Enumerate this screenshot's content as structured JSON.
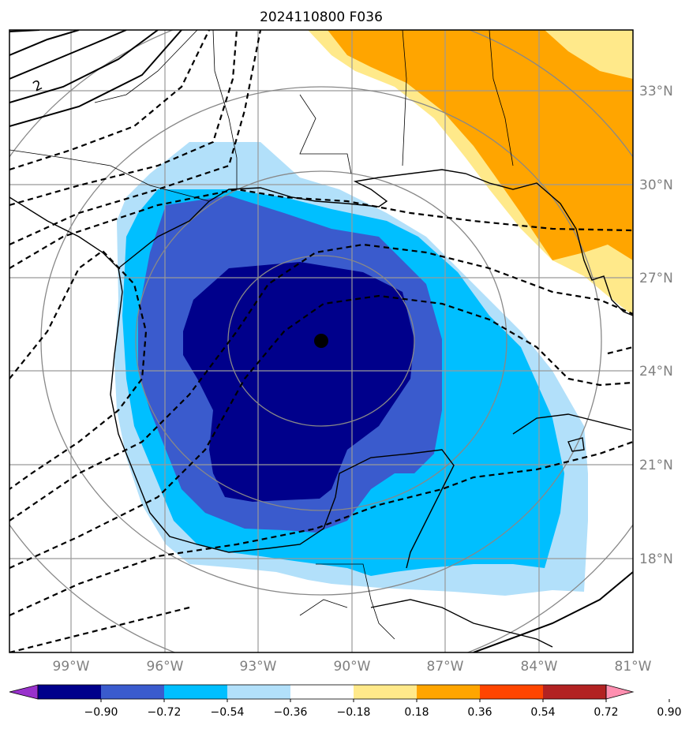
{
  "title": "2024110800 F036",
  "lon_labels": [
    "99°W",
    "96°W",
    "93°W",
    "90°W",
    "87°W",
    "84°W",
    "81°W"
  ],
  "lat_labels": [
    "33°N",
    "30°N",
    "27°N",
    "24°N",
    "21°N",
    "18°N"
  ],
  "contour_label": "2",
  "colorbar": {
    "tick_labels": [
      "−0.90",
      "−0.72",
      "−0.54",
      "−0.36",
      "−0.18",
      "0.18",
      "0.36",
      "0.54",
      "0.72",
      "0.90"
    ],
    "colors": [
      "#9932cc",
      "#00008b",
      "#3a5bcd",
      "#00bfff",
      "#b2e0fa",
      "#ffffff",
      "#ffe98a",
      "#ffa500",
      "#ff4500",
      "#b22222",
      "#ff8fb0"
    ]
  },
  "storm_center": {
    "lat": 25.0,
    "lon": -90.9
  }
}
